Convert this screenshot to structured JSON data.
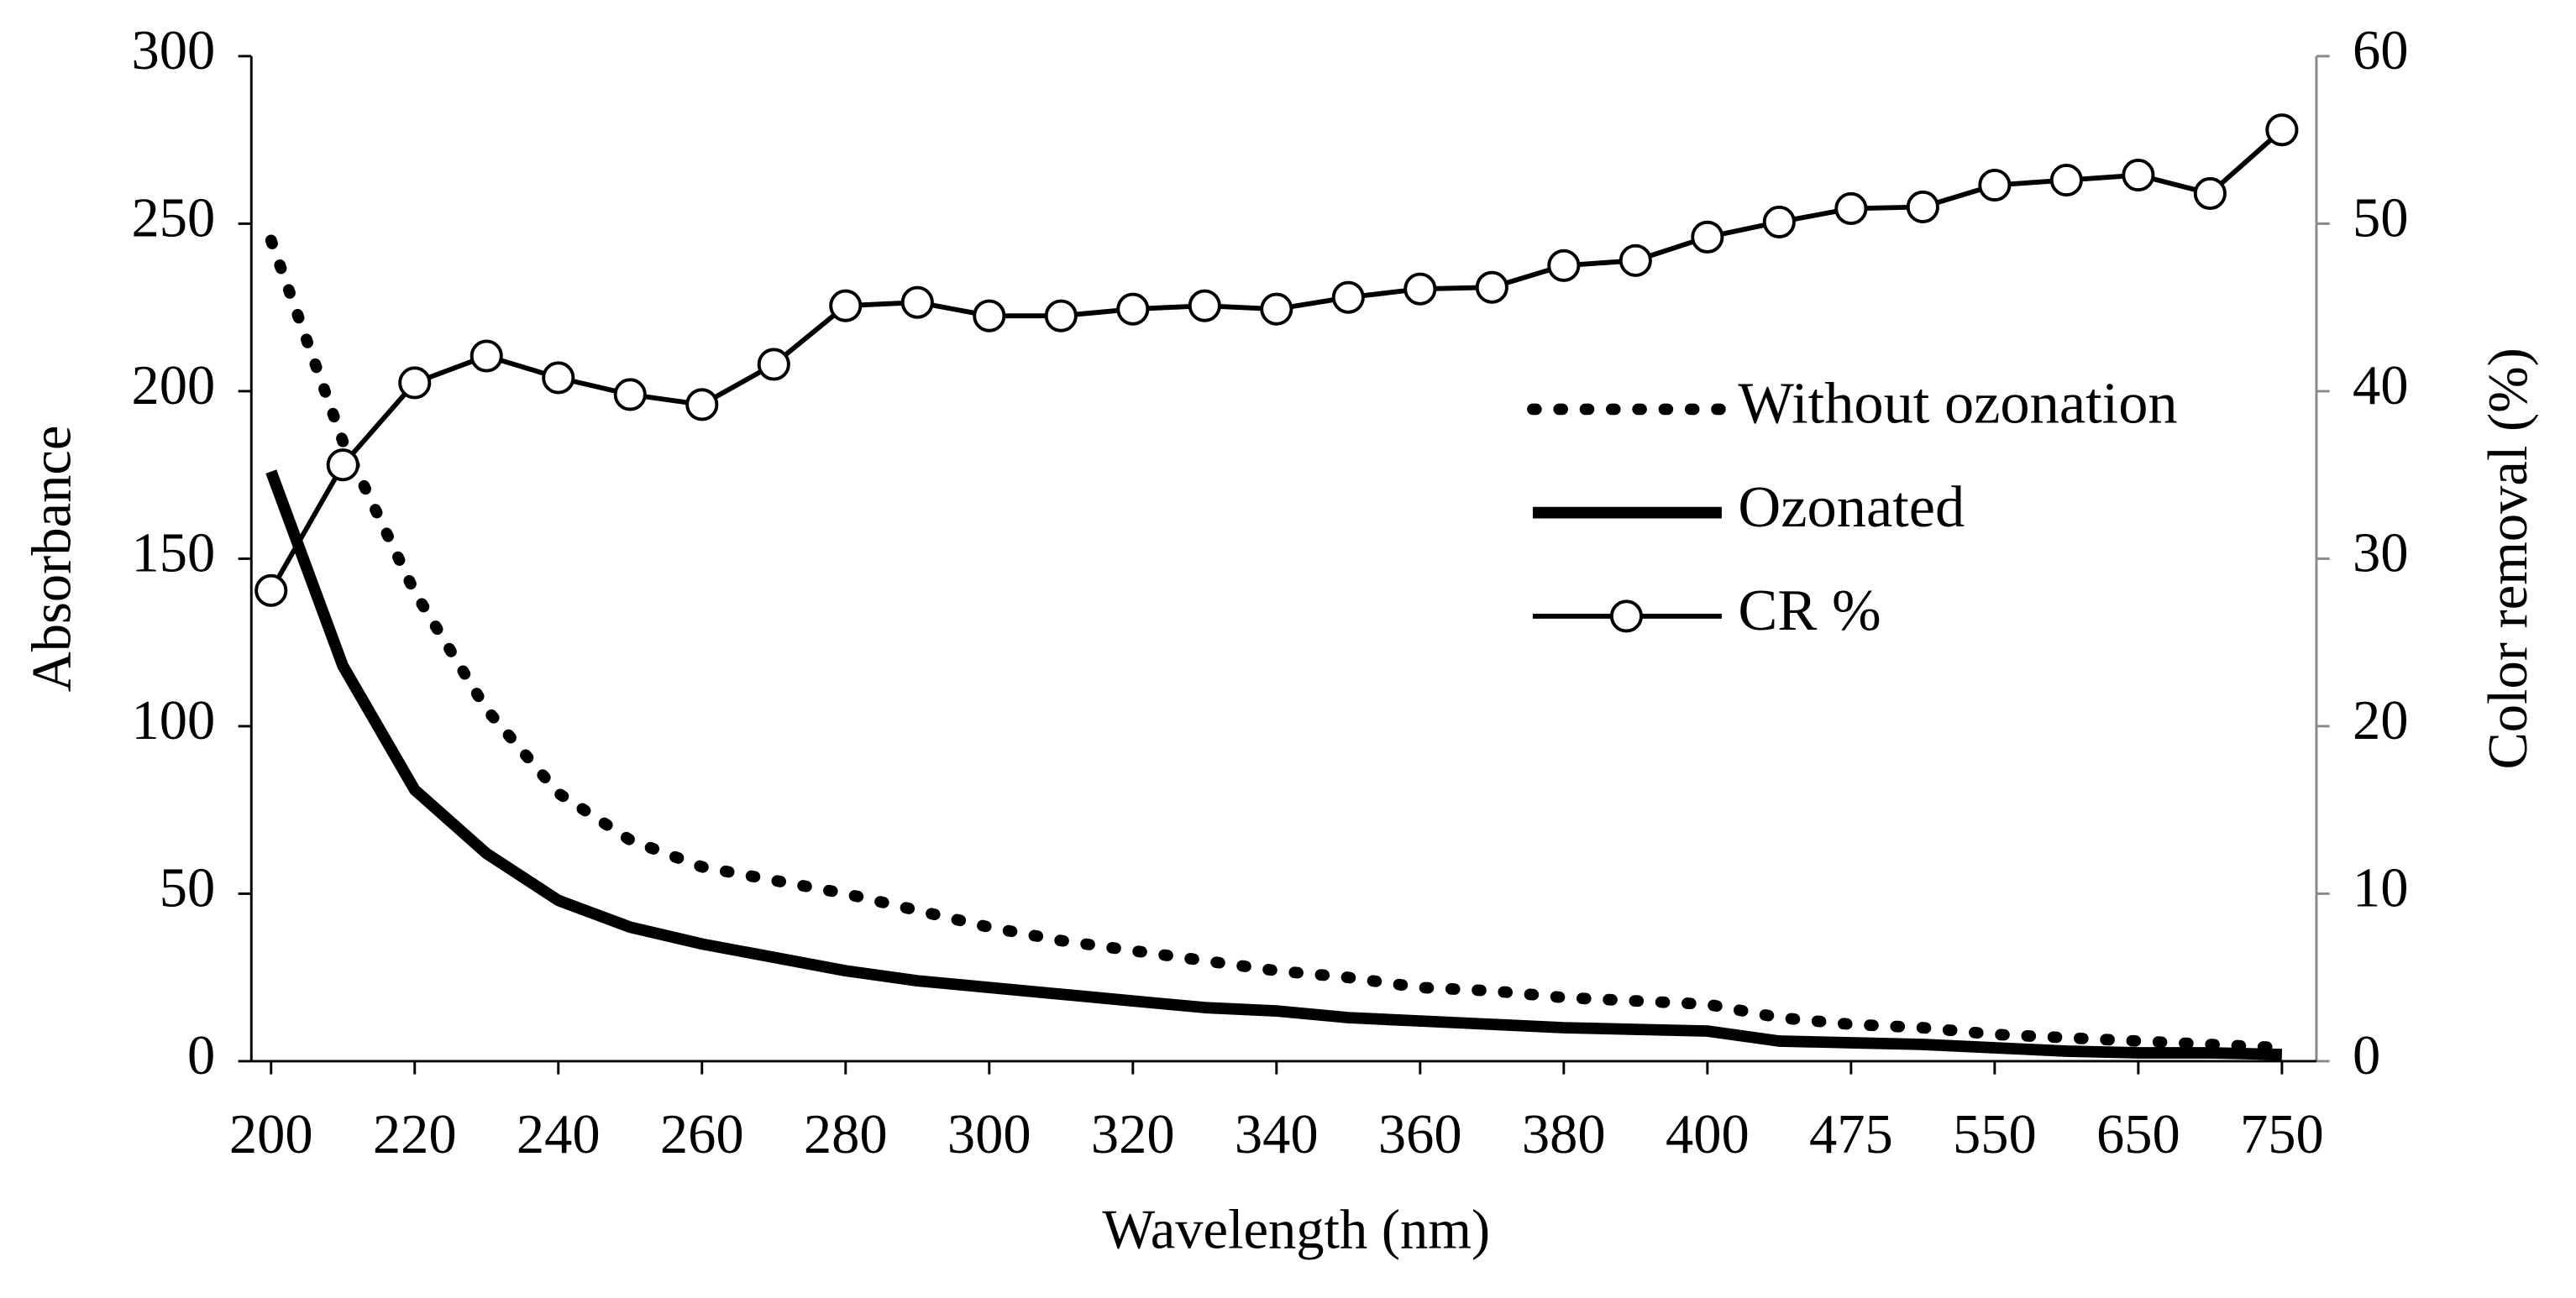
{
  "chart_data": {
    "type": "line",
    "xlabel": "Wavelength (nm)",
    "ylabel": "Absorbance",
    "y2label": "Color removal (%)",
    "categories": [
      "200",
      null,
      "220",
      null,
      "240",
      null,
      "260",
      null,
      "280",
      null,
      "300",
      null,
      "320",
      null,
      "340",
      null,
      "360",
      null,
      "380",
      null,
      "400",
      null,
      "475",
      null,
      "550",
      null,
      "650",
      null,
      "750"
    ],
    "series": [
      {
        "name": "Without ozonation",
        "color": "#000000",
        "dash": "dotted",
        "values": [
          245,
          185,
          140,
          105,
          80,
          66,
          58,
          54,
          50,
          45,
          40,
          36,
          33,
          30,
          27,
          25,
          22,
          21,
          19,
          18,
          17,
          13,
          11,
          10,
          8,
          7,
          6,
          5,
          4
        ]
      },
      {
        "name": "Ozonated",
        "color": "#000000",
        "dash": "solid",
        "values": [
          176,
          118,
          81,
          62,
          48,
          40,
          35,
          31,
          27,
          24,
          22,
          20,
          18,
          16,
          15,
          13,
          12,
          11,
          10,
          9.5,
          9,
          6,
          5.5,
          5,
          4,
          3,
          2.5,
          2.5,
          2
        ]
      },
      {
        "name": "CR %",
        "color": "#000000",
        "dash": "solid",
        "marker": "circle",
        "axis": "y2",
        "values": [
          28.1,
          35.6,
          40.5,
          42.1,
          40.8,
          39.8,
          39.2,
          41.6,
          45.1,
          45.3,
          44.5,
          44.5,
          44.9,
          45.1,
          44.9,
          45.6,
          46.1,
          46.2,
          47.5,
          47.8,
          49.2,
          50.1,
          50.9,
          51.0,
          52.3,
          52.6,
          52.9,
          51.8,
          55.6
        ]
      }
    ],
    "ylim": [
      0,
      300
    ],
    "yticks": [
      0,
      50,
      100,
      150,
      200,
      250,
      300
    ],
    "y2lim": [
      0,
      60
    ],
    "y2ticks": [
      0,
      10,
      20,
      30,
      40,
      50,
      60
    ],
    "grid": false,
    "legend": "center right"
  }
}
